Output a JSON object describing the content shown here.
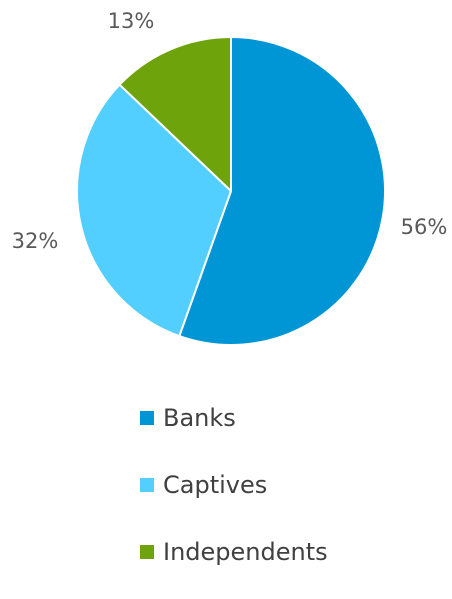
{
  "chart_data": {
    "type": "pie",
    "slices": [
      {
        "name": "Banks",
        "value": 56,
        "label": "56%",
        "color": "#0096D6"
      },
      {
        "name": "Captives",
        "value": 32,
        "label": "32%",
        "color": "#52CFFF"
      },
      {
        "name": "Independents",
        "value": 13,
        "label": "13%",
        "color": "#6FA30C"
      }
    ],
    "start_angle_deg": 0,
    "direction": "clockwise",
    "legend_position": "bottom",
    "slice_border_color": "#ffffff"
  }
}
